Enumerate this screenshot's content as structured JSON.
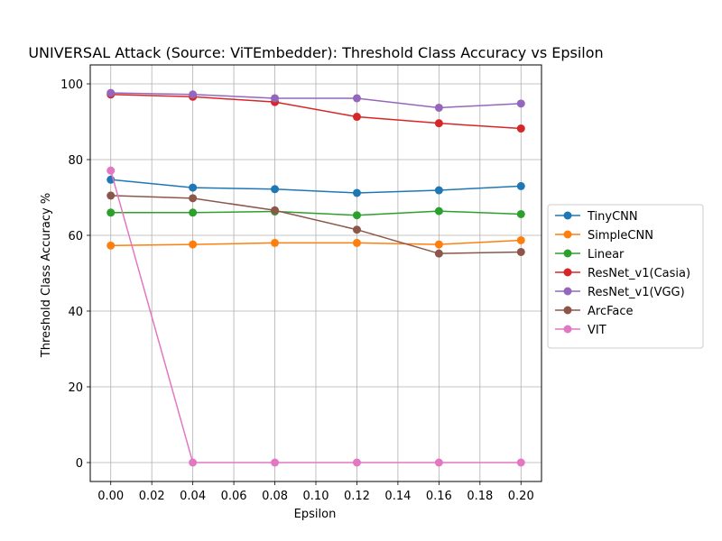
{
  "chart_data": {
    "type": "line",
    "title": "UNIVERSAL Attack (Source: ViTEmbedder): Threshold Class Accuracy vs Epsilon",
    "xlabel": "Epsilon",
    "ylabel": "Threshold Class Accuracy %",
    "xlim": [
      -0.01,
      0.21
    ],
    "ylim": [
      -5,
      105
    ],
    "xticks": [
      0.0,
      0.02,
      0.04,
      0.06,
      0.08,
      0.1,
      0.12,
      0.14,
      0.16,
      0.18,
      0.2
    ],
    "xtick_labels": [
      "0.00",
      "0.02",
      "0.04",
      "0.06",
      "0.08",
      "0.10",
      "0.12",
      "0.14",
      "0.16",
      "0.18",
      "0.20"
    ],
    "yticks": [
      0,
      20,
      40,
      60,
      80,
      100
    ],
    "ytick_labels": [
      "0",
      "20",
      "40",
      "60",
      "80",
      "100"
    ],
    "grid": true,
    "legend_position": "center-right-outside",
    "x": [
      0.0,
      0.04,
      0.08,
      0.12,
      0.16,
      0.2
    ],
    "series": [
      {
        "name": "TinyCNN",
        "color": "#1f77b4",
        "values": [
          74.7,
          72.6,
          72.2,
          71.2,
          71.9,
          73.0
        ]
      },
      {
        "name": "SimpleCNN",
        "color": "#ff7f0e",
        "values": [
          57.3,
          57.6,
          58.0,
          58.0,
          57.6,
          58.7
        ]
      },
      {
        "name": "Linear",
        "color": "#2ca02c",
        "values": [
          66.0,
          66.0,
          66.3,
          65.3,
          66.4,
          65.6
        ]
      },
      {
        "name": "ResNet_v1(Casia)",
        "color": "#d62728",
        "values": [
          97.2,
          96.6,
          95.2,
          91.3,
          89.6,
          88.2
        ]
      },
      {
        "name": "ResNet_v1(VGG)",
        "color": "#9467bd",
        "values": [
          97.6,
          97.2,
          96.2,
          96.2,
          93.7,
          94.8
        ]
      },
      {
        "name": "ArcFace",
        "color": "#8c564b",
        "values": [
          70.5,
          69.8,
          66.6,
          61.5,
          55.2,
          55.6
        ]
      },
      {
        "name": "VIT",
        "color": "#e377c2",
        "values": [
          77.1,
          0.0,
          0.0,
          0.0,
          0.0,
          0.0
        ]
      }
    ]
  }
}
